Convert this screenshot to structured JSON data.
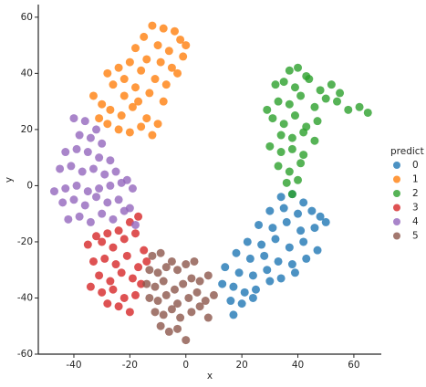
{
  "chart_data": {
    "type": "scatter",
    "x_label": "x",
    "y_label": "y",
    "legend_title": "predict",
    "legend": "right",
    "xlim": [
      -52.7,
      69.8
    ],
    "ylim": [
      -60,
      64.5
    ],
    "xticks": [
      -40,
      -20,
      0,
      20,
      40,
      60
    ],
    "yticks": [
      -60,
      -40,
      -20,
      0,
      20,
      40,
      60
    ],
    "series": [
      {
        "name": "0",
        "color": "#1f77b4",
        "x": [
          34,
          38,
          42,
          30,
          35,
          40,
          45,
          48,
          26,
          31,
          36,
          41,
          46,
          50,
          22,
          27,
          32,
          37,
          42,
          47,
          18,
          23,
          28,
          33,
          38,
          43,
          14,
          19,
          24,
          29,
          34,
          39,
          13,
          17,
          21,
          25,
          30,
          16,
          20,
          24,
          17
        ],
        "y": [
          -4,
          -3,
          -6,
          -9,
          -8,
          -10,
          -9,
          -11,
          -14,
          -15,
          -13,
          -16,
          -15,
          -13,
          -20,
          -21,
          -19,
          -22,
          -20,
          -23,
          -24,
          -26,
          -25,
          -27,
          -28,
          -26,
          -29,
          -31,
          -32,
          -30,
          -33,
          -31,
          -35,
          -36,
          -38,
          -37,
          -34,
          -41,
          -42,
          -40,
          -46
        ]
      },
      {
        "name": "1",
        "color": "#ff7f0e",
        "x": [
          -12,
          -8,
          -4,
          -2,
          0,
          -15,
          -10,
          -6,
          -1,
          -18,
          -14,
          -9,
          -5,
          -20,
          -16,
          -11,
          -7,
          -3,
          -24,
          -22,
          -18,
          -13,
          -28,
          -26,
          -22,
          -17,
          -33,
          -30,
          -27,
          -23,
          -19,
          -14,
          -31,
          -28,
          -24,
          -20,
          -16,
          -12,
          -10,
          -8
        ],
        "y": [
          57,
          56,
          55,
          52,
          50,
          53,
          50,
          48,
          46,
          49,
          45,
          44,
          42,
          44,
          41,
          38,
          36,
          40,
          42,
          38,
          35,
          33,
          40,
          36,
          32,
          30,
          32,
          29,
          27,
          25,
          28,
          24,
          24,
          22,
          20,
          19,
          21,
          18,
          22,
          30
        ]
      },
      {
        "name": "2",
        "color": "#2ca02c",
        "x": [
          37,
          40,
          43,
          32,
          35,
          39,
          44,
          48,
          52,
          55,
          29,
          33,
          37,
          41,
          46,
          50,
          54,
          58,
          62,
          65,
          31,
          35,
          39,
          43,
          47,
          34,
          38,
          42,
          46,
          30,
          34,
          38,
          42,
          33,
          37,
          41,
          36,
          40,
          38
        ],
        "y": [
          41,
          42,
          39,
          36,
          37,
          35,
          38,
          34,
          36,
          33,
          27,
          30,
          29,
          32,
          28,
          31,
          30,
          27,
          28,
          26,
          24,
          22,
          25,
          21,
          23,
          18,
          17,
          19,
          16,
          14,
          12,
          13,
          11,
          7,
          5,
          8,
          1,
          2,
          -3
        ]
      },
      {
        "name": "3",
        "color": "#d62728",
        "x": [
          -32,
          -28,
          -24,
          -20,
          -17,
          -35,
          -30,
          -26,
          -22,
          -18,
          -15,
          -33,
          -29,
          -25,
          -21,
          -17,
          -14,
          -31,
          -27,
          -23,
          -19,
          -16,
          -34,
          -30,
          -26,
          -22,
          -18,
          -28,
          -24,
          -20
        ],
        "y": [
          -18,
          -17,
          -16,
          -13,
          -11,
          -21,
          -20,
          -22,
          -19,
          -17,
          -23,
          -27,
          -26,
          -28,
          -25,
          -29,
          -27,
          -32,
          -34,
          -31,
          -33,
          -35,
          -36,
          -38,
          -37,
          -40,
          -39,
          -42,
          -43,
          -45
        ]
      },
      {
        "name": "4",
        "color": "#9467bd",
        "x": [
          -40,
          -36,
          -32,
          -38,
          -34,
          -30,
          -43,
          -39,
          -35,
          -31,
          -27,
          -45,
          -41,
          -37,
          -33,
          -29,
          -25,
          -21,
          -47,
          -43,
          -39,
          -35,
          -31,
          -27,
          -23,
          -19,
          -44,
          -40,
          -36,
          -32,
          -28,
          -24,
          -20,
          -42,
          -38,
          -34,
          -30,
          -26,
          -22,
          -18
        ],
        "y": [
          24,
          23,
          20,
          18,
          17,
          15,
          12,
          13,
          12,
          10,
          9,
          6,
          7,
          5,
          6,
          4,
          5,
          2,
          -2,
          -1,
          0,
          -2,
          -1,
          0,
          1,
          -1,
          -6,
          -5,
          -7,
          -4,
          -6,
          -5,
          -8,
          -12,
          -11,
          -13,
          -10,
          -12,
          -9,
          -14
        ]
      },
      {
        "name": "5",
        "color": "#8c564b",
        "x": [
          -12,
          -9,
          -5,
          -13,
          -10,
          -7,
          -3,
          0,
          3,
          -14,
          -11,
          -8,
          -4,
          -1,
          2,
          5,
          8,
          -13,
          -10,
          -7,
          -3,
          1,
          4,
          7,
          10,
          -11,
          -8,
          -5,
          -2,
          2,
          5,
          8,
          -9,
          -6,
          -3,
          0
        ],
        "y": [
          -25,
          -24,
          -27,
          -30,
          -31,
          -29,
          -30,
          -28,
          -27,
          -35,
          -36,
          -34,
          -37,
          -35,
          -33,
          -34,
          -32,
          -40,
          -41,
          -39,
          -42,
          -40,
          -38,
          -41,
          -39,
          -45,
          -46,
          -44,
          -47,
          -45,
          -43,
          -47,
          -50,
          -52,
          -51,
          -55
        ]
      }
    ]
  }
}
